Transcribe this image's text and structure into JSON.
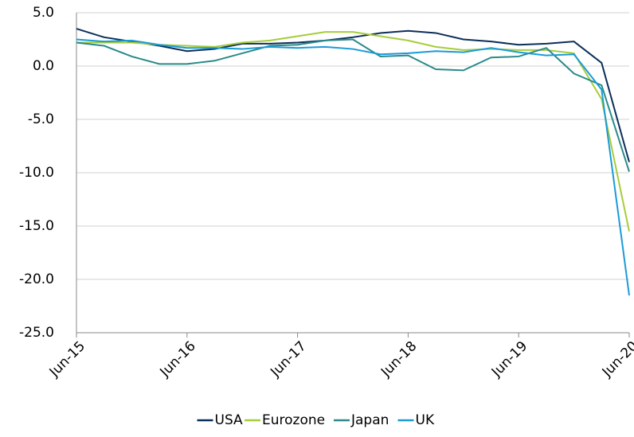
{
  "chart_data": {
    "type": "line",
    "categories": [
      "Jun-15",
      null,
      null,
      null,
      "Jun-16",
      null,
      null,
      null,
      "Jun-17",
      null,
      null,
      null,
      "Jun-18",
      null,
      null,
      null,
      "Jun-19",
      null,
      null,
      null,
      "Jun-20"
    ],
    "series": [
      {
        "name": "USA",
        "color": "#0b2e59",
        "values": [
          3.5,
          2.7,
          2.3,
          1.9,
          1.4,
          1.6,
          2.1,
          2.1,
          2.2,
          2.4,
          2.7,
          3.1,
          3.3,
          3.1,
          2.5,
          2.3,
          2.0,
          2.1,
          2.3,
          0.3,
          -9.0
        ]
      },
      {
        "name": "Eurozone",
        "color": "#a6cd3b",
        "values": [
          2.2,
          2.2,
          2.2,
          2.0,
          1.9,
          1.8,
          2.2,
          2.4,
          2.8,
          3.2,
          3.2,
          2.8,
          2.4,
          1.8,
          1.5,
          1.6,
          1.5,
          1.5,
          1.2,
          -3.1,
          -15.5
        ]
      },
      {
        "name": "Japan",
        "color": "#2a8a8a",
        "values": [
          2.2,
          1.9,
          0.9,
          0.2,
          0.2,
          0.5,
          1.2,
          1.9,
          2.0,
          2.4,
          2.5,
          0.9,
          1.0,
          -0.3,
          -0.4,
          0.8,
          0.9,
          1.7,
          -0.7,
          -1.8,
          -9.9
        ]
      },
      {
        "name": "UK",
        "color": "#1a9bd7",
        "values": [
          2.5,
          2.3,
          2.4,
          2.0,
          1.7,
          1.7,
          1.6,
          1.8,
          1.7,
          1.8,
          1.6,
          1.1,
          1.2,
          1.4,
          1.3,
          1.7,
          1.3,
          1.0,
          1.1,
          -2.2,
          -21.5
        ]
      }
    ],
    "ylim": [
      -25,
      5
    ],
    "yticks": [
      {
        "value": -25,
        "label": "-25.0"
      },
      {
        "value": -20,
        "label": "-20.0"
      },
      {
        "value": -15,
        "label": "-15.0"
      },
      {
        "value": -10,
        "label": "-10.0"
      },
      {
        "value": -5,
        "label": "-5.0"
      },
      {
        "value": 0,
        "label": "0.0"
      },
      {
        "value": 5,
        "label": "5.0"
      }
    ],
    "grid": true
  }
}
